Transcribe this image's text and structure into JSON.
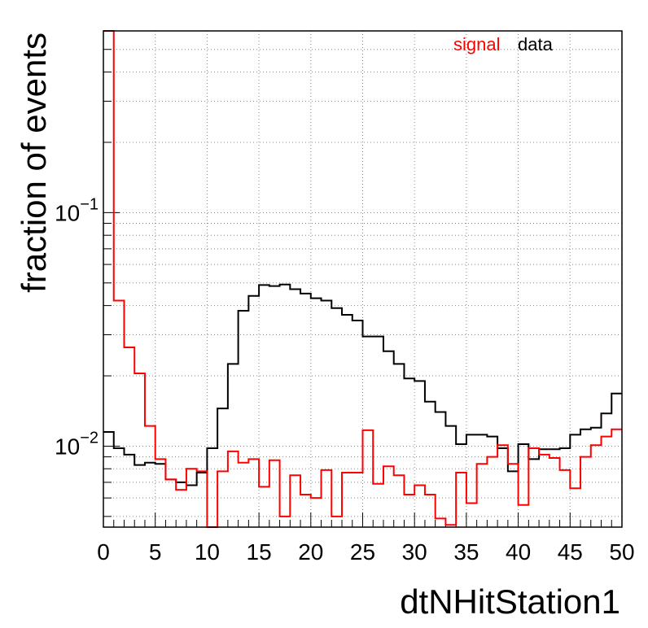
{
  "chart_data": {
    "type": "histogram-step",
    "xlabel": "dtNHitStation1",
    "ylabel": "fraction of events",
    "xlim": [
      0,
      50
    ],
    "ylim": [
      0.0045,
      0.6
    ],
    "yscale": "log",
    "grid": true,
    "legend_position": "top-right",
    "x_ticks": [
      "0",
      "5",
      "10",
      "15",
      "20",
      "25",
      "30",
      "35",
      "40",
      "45",
      "50"
    ],
    "y_ticks": [
      {
        "value": 0.1,
        "base": "10",
        "exp": "−1"
      },
      {
        "value": 0.01,
        "base": "10",
        "exp": "−2"
      }
    ],
    "bin_edges_start": 0,
    "bin_width": 1,
    "series": [
      {
        "name": "data",
        "color": "#000000",
        "values": [
          0.0115,
          0.0098,
          0.0092,
          0.0083,
          0.0085,
          0.0084,
          0.0072,
          0.007,
          0.0068,
          0.0077,
          0.0098,
          0.0145,
          0.0225,
          0.038,
          0.044,
          0.049,
          0.0485,
          0.0492,
          0.047,
          0.045,
          0.043,
          0.042,
          0.039,
          0.0365,
          0.0345,
          0.0295,
          0.0295,
          0.0255,
          0.0225,
          0.0195,
          0.019,
          0.0155,
          0.014,
          0.0122,
          0.0102,
          0.0112,
          0.0112,
          0.011,
          0.0098,
          0.0078,
          0.0102,
          0.0088,
          0.0097,
          0.0097,
          0.0098,
          0.0112,
          0.0118,
          0.012,
          0.0138,
          0.0168
        ]
      },
      {
        "name": "signal",
        "color": "#ff0000",
        "values": [
          0.6,
          0.042,
          0.0265,
          0.0205,
          0.0122,
          0.0088,
          0.0072,
          0.0065,
          0.008,
          0.0078,
          0.0042,
          0.0078,
          0.0095,
          0.0085,
          0.0088,
          0.0067,
          0.0087,
          0.005,
          0.0075,
          0.0062,
          0.006,
          0.0079,
          0.005,
          0.0077,
          0.0077,
          0.0117,
          0.0069,
          0.0082,
          0.0075,
          0.0062,
          0.0068,
          0.0062,
          0.0049,
          0.0046,
          0.0077,
          0.0057,
          0.0084,
          0.009,
          0.0101,
          0.0084,
          0.0056,
          0.0098,
          0.0092,
          0.0089,
          0.0079,
          0.0066,
          0.009,
          0.0101,
          0.011,
          0.0118
        ]
      }
    ]
  }
}
